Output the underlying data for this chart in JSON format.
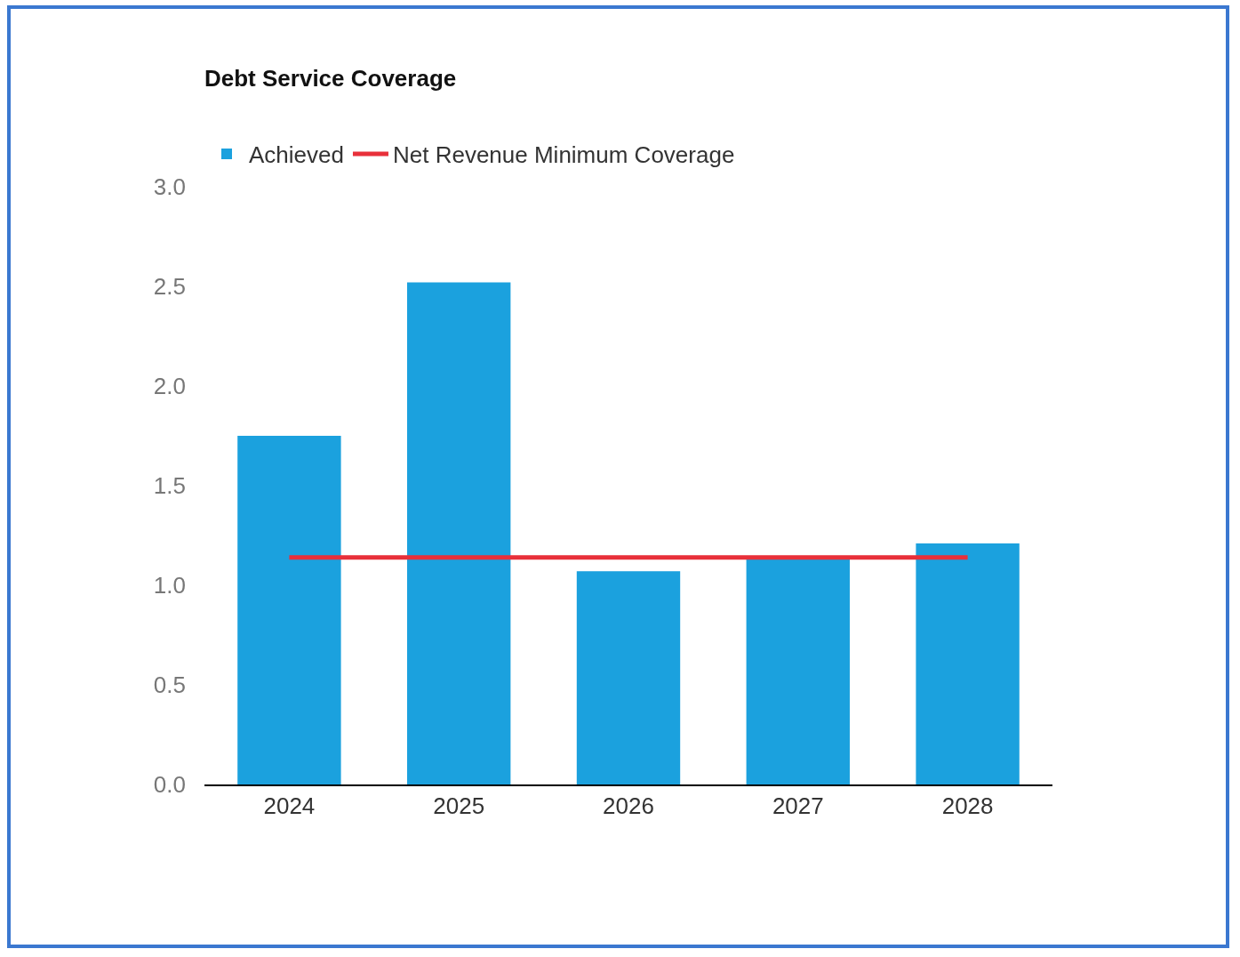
{
  "chart_data": {
    "type": "bar",
    "title": "Debt Service Coverage",
    "categories": [
      "2024",
      "2025",
      "2026",
      "2027",
      "2028"
    ],
    "series": [
      {
        "name": "Achieved",
        "color": "#1ba1de",
        "values": [
          1.75,
          2.52,
          1.07,
          1.13,
          1.21
        ]
      },
      {
        "name": "Net Revenue Minimum Coverage",
        "type": "line",
        "color": "#e8303a",
        "values": [
          1.14,
          1.14,
          1.14,
          1.14,
          1.14
        ]
      }
    ],
    "ylim": [
      0,
      3
    ],
    "yticks": [
      {
        "value": 0,
        "label": "0.0"
      },
      {
        "value": 0.5,
        "label": "0.5"
      },
      {
        "value": 1,
        "label": "1.0"
      },
      {
        "value": 1.5,
        "label": "1.5"
      },
      {
        "value": 2,
        "label": "2.0"
      },
      {
        "value": 2.5,
        "label": "2.5"
      },
      {
        "value": 3,
        "label": "3.0"
      }
    ],
    "grid": false,
    "legend": "top left",
    "marker": "none"
  }
}
